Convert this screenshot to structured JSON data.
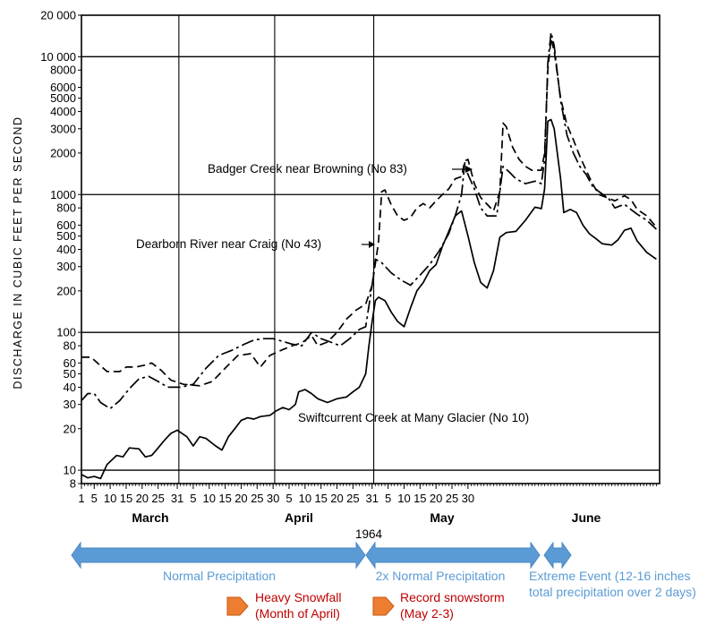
{
  "chart_data": {
    "type": "line",
    "yscale": "log",
    "ylim": [
      8,
      20000
    ],
    "ylabel": "DISCHARGE IN CUBIC FEET PER SECOND",
    "y_tick_labels": [
      "8",
      "10",
      "20",
      "30",
      "40",
      "50",
      "60",
      "80",
      "100",
      "200",
      "300",
      "400",
      "500",
      "600",
      "800",
      "1000",
      "2000",
      "3000",
      "4000",
      "5000",
      "6000",
      "8000",
      "10 000",
      "20 000"
    ],
    "x_tick_labels": [
      "1",
      "5",
      "10",
      "15",
      "20",
      "25",
      "31",
      "5",
      "10",
      "15",
      "20",
      "25",
      "30",
      "5",
      "10",
      "15",
      "20",
      "25",
      "31",
      "5",
      "10",
      "15",
      "20",
      "25",
      "30"
    ],
    "months": [
      "March",
      "April",
      "May",
      "June"
    ],
    "year_label": "1964",
    "grid": "major log decades and month boundaries",
    "series": [
      {
        "name": "Badger Creek near Browning (No 83)",
        "style": "long-dash",
        "points": [
          [
            1,
            66
          ],
          [
            4,
            66
          ],
          [
            6,
            60
          ],
          [
            9,
            52
          ],
          [
            13,
            52
          ],
          [
            15,
            56
          ],
          [
            18,
            56
          ],
          [
            21,
            58
          ],
          [
            23,
            60
          ],
          [
            26,
            53
          ],
          [
            29,
            45
          ],
          [
            33,
            42
          ],
          [
            38,
            41
          ],
          [
            42,
            44
          ],
          [
            46,
            55
          ],
          [
            50,
            68
          ],
          [
            54,
            70
          ],
          [
            57,
            56
          ],
          [
            60,
            68
          ],
          [
            64,
            75
          ],
          [
            67,
            80
          ],
          [
            70,
            84
          ],
          [
            73,
            95
          ],
          [
            75,
            80
          ],
          [
            78,
            85
          ],
          [
            81,
            100
          ],
          [
            84,
            125
          ],
          [
            87,
            145
          ],
          [
            90,
            160
          ],
          [
            92,
            220
          ],
          [
            94,
            450
          ],
          [
            95,
            1050
          ],
          [
            96,
            1080
          ],
          [
            98,
            840
          ],
          [
            100,
            700
          ],
          [
            102,
            650
          ],
          [
            104,
            680
          ],
          [
            106,
            800
          ],
          [
            108,
            860
          ],
          [
            110,
            800
          ],
          [
            112,
            900
          ],
          [
            114,
            1000
          ],
          [
            116,
            1100
          ],
          [
            118,
            1300
          ],
          [
            120,
            1350
          ],
          [
            121,
            1750
          ],
          [
            122,
            1800
          ],
          [
            124,
            1200
          ],
          [
            126,
            950
          ],
          [
            128,
            850
          ],
          [
            130,
            760
          ],
          [
            132,
            1050
          ],
          [
            133,
            3300
          ],
          [
            134,
            3100
          ],
          [
            136,
            2200
          ],
          [
            138,
            1800
          ],
          [
            140,
            1600
          ],
          [
            142,
            1500
          ],
          [
            145,
            1500
          ],
          [
            146,
            2000
          ],
          [
            147,
            8000
          ],
          [
            148,
            13500
          ],
          [
            149,
            11000
          ],
          [
            151,
            5000
          ],
          [
            153,
            3200
          ],
          [
            155,
            2500
          ],
          [
            157,
            1900
          ],
          [
            159,
            1500
          ],
          [
            161,
            1200
          ],
          [
            163,
            1000
          ],
          [
            166,
            940
          ],
          [
            168,
            900
          ],
          [
            171,
            980
          ],
          [
            173,
            920
          ],
          [
            175,
            780
          ],
          [
            178,
            700
          ],
          [
            181,
            580
          ]
        ]
      },
      {
        "name": "Dearborn River near Craig (No 43)",
        "style": "dash-dot",
        "points": [
          [
            1,
            32
          ],
          [
            3,
            36
          ],
          [
            5,
            36
          ],
          [
            7,
            31
          ],
          [
            10,
            28
          ],
          [
            13,
            32
          ],
          [
            16,
            39
          ],
          [
            19,
            46
          ],
          [
            22,
            48
          ],
          [
            25,
            44
          ],
          [
            28,
            40
          ],
          [
            32,
            40
          ],
          [
            36,
            42
          ],
          [
            40,
            55
          ],
          [
            44,
            68
          ],
          [
            48,
            74
          ],
          [
            52,
            82
          ],
          [
            55,
            88
          ],
          [
            58,
            90
          ],
          [
            61,
            90
          ],
          [
            64,
            86
          ],
          [
            67,
            82
          ],
          [
            70,
            80
          ],
          [
            73,
            100
          ],
          [
            76,
            90
          ],
          [
            79,
            85
          ],
          [
            82,
            80
          ],
          [
            85,
            90
          ],
          [
            88,
            105
          ],
          [
            90,
            110
          ],
          [
            92,
            220
          ],
          [
            93,
            340
          ],
          [
            95,
            320
          ],
          [
            98,
            270
          ],
          [
            101,
            240
          ],
          [
            104,
            220
          ],
          [
            107,
            260
          ],
          [
            110,
            310
          ],
          [
            113,
            390
          ],
          [
            116,
            520
          ],
          [
            118,
            700
          ],
          [
            120,
            1000
          ],
          [
            121,
            1700
          ],
          [
            122,
            1400
          ],
          [
            124,
            1100
          ],
          [
            126,
            800
          ],
          [
            128,
            700
          ],
          [
            131,
            700
          ],
          [
            133,
            1600
          ],
          [
            135,
            1450
          ],
          [
            137,
            1300
          ],
          [
            140,
            1200
          ],
          [
            143,
            1250
          ],
          [
            145,
            1200
          ],
          [
            146,
            1800
          ],
          [
            147,
            9000
          ],
          [
            148,
            15000
          ],
          [
            149,
            12000
          ],
          [
            151,
            4800
          ],
          [
            153,
            2700
          ],
          [
            155,
            2000
          ],
          [
            157,
            1600
          ],
          [
            159,
            1400
          ],
          [
            161,
            1150
          ],
          [
            163,
            1050
          ],
          [
            166,
            940
          ],
          [
            168,
            800
          ],
          [
            171,
            850
          ],
          [
            173,
            780
          ],
          [
            175,
            720
          ],
          [
            178,
            650
          ],
          [
            181,
            560
          ]
        ]
      },
      {
        "name": "Swiftcurrent Creek at Many Glacier (No 10)",
        "style": "solid",
        "points": [
          [
            1,
            9.3
          ],
          [
            3,
            8.8
          ],
          [
            5,
            9.0
          ],
          [
            7,
            8.7
          ],
          [
            9,
            11
          ],
          [
            12,
            12.8
          ],
          [
            14,
            12.5
          ],
          [
            16,
            14.5
          ],
          [
            19,
            14.3
          ],
          [
            21,
            12.5
          ],
          [
            23,
            12.8
          ],
          [
            25,
            14.5
          ],
          [
            27,
            16.5
          ],
          [
            29,
            18.5
          ],
          [
            31,
            19.5
          ],
          [
            34,
            17.5
          ],
          [
            36,
            15
          ],
          [
            38,
            17.5
          ],
          [
            40,
            17
          ],
          [
            43,
            15
          ],
          [
            45,
            14
          ],
          [
            47,
            17.5
          ],
          [
            49,
            20
          ],
          [
            51,
            23
          ],
          [
            53,
            24
          ],
          [
            55,
            23.5
          ],
          [
            57,
            24.5
          ],
          [
            60,
            25
          ],
          [
            62,
            27
          ],
          [
            64,
            28.5
          ],
          [
            66,
            27.5
          ],
          [
            68,
            30
          ],
          [
            69,
            37
          ],
          [
            71,
            38.5
          ],
          [
            73,
            36
          ],
          [
            75,
            33
          ],
          [
            78,
            31
          ],
          [
            81,
            33
          ],
          [
            84,
            34
          ],
          [
            86,
            37
          ],
          [
            88,
            40
          ],
          [
            90,
            50
          ],
          [
            91,
            80
          ],
          [
            92,
            120
          ],
          [
            93,
            170
          ],
          [
            94,
            180
          ],
          [
            96,
            170
          ],
          [
            98,
            140
          ],
          [
            100,
            120
          ],
          [
            102,
            110
          ],
          [
            104,
            150
          ],
          [
            106,
            200
          ],
          [
            108,
            230
          ],
          [
            110,
            280
          ],
          [
            112,
            310
          ],
          [
            114,
            420
          ],
          [
            116,
            540
          ],
          [
            118,
            700
          ],
          [
            120,
            760
          ],
          [
            122,
            500
          ],
          [
            124,
            320
          ],
          [
            126,
            230
          ],
          [
            128,
            210
          ],
          [
            130,
            280
          ],
          [
            132,
            490
          ],
          [
            134,
            530
          ],
          [
            137,
            540
          ],
          [
            140,
            650
          ],
          [
            143,
            810
          ],
          [
            145,
            790
          ],
          [
            146,
            1100
          ],
          [
            147,
            3400
          ],
          [
            148,
            3500
          ],
          [
            149,
            3000
          ],
          [
            151,
            1300
          ],
          [
            152,
            740
          ],
          [
            154,
            780
          ],
          [
            156,
            740
          ],
          [
            158,
            600
          ],
          [
            160,
            520
          ],
          [
            162,
            480
          ],
          [
            164,
            440
          ],
          [
            167,
            430
          ],
          [
            169,
            470
          ],
          [
            171,
            550
          ],
          [
            173,
            570
          ],
          [
            175,
            460
          ],
          [
            178,
            380
          ],
          [
            181,
            340
          ]
        ]
      }
    ]
  },
  "annotations": {
    "badger": "Badger Creek near Browning (No 83)",
    "dearborn": "Dearborn River near Craig (No 43)",
    "swift": "Swiftcurrent Creek at Many Glacier (No 10)"
  },
  "periods": {
    "normal": "Normal Precipitation",
    "double": "2x Normal Precipitation",
    "extreme_line1": "Extreme Event (12-16 inches",
    "extreme_line2": "total precipitation over 2 days)"
  },
  "callouts": {
    "snowfall_line1": "Heavy Snowfall",
    "snowfall_line2": "(Month of April)",
    "storm_line1": "Record snowstorm",
    "storm_line2": "(May 2-3)"
  },
  "colors": {
    "arrow_fill": "#5b9bd5",
    "arrow_stroke": "#4a86c0",
    "period_text": "#5b9bd5",
    "callout_text": "#c00000",
    "marker_fill": "#ed7d31"
  }
}
